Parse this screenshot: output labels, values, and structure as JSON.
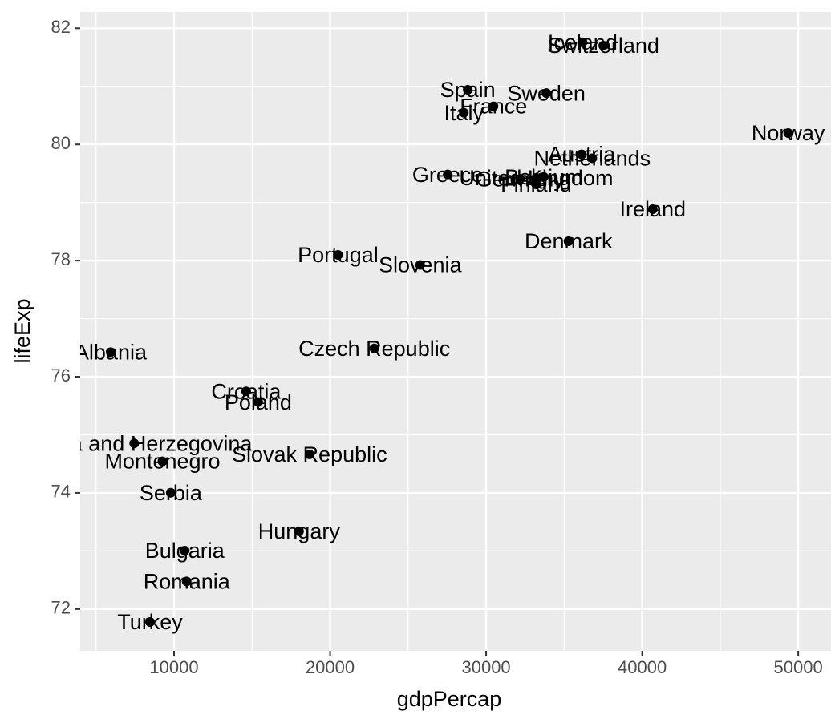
{
  "chart_data": {
    "type": "scatter",
    "x_label": "gdpPercap",
    "y_label": "lifeExp",
    "labels": [
      "Albania",
      "Austria",
      "Belgium",
      "Bosnia and Herzegovina",
      "Bulgaria",
      "Croatia",
      "Czech Republic",
      "Denmark",
      "Finland",
      "France",
      "Germany",
      "Greece",
      "Hungary",
      "Iceland",
      "Ireland",
      "Italy",
      "Montenegro",
      "Netherlands",
      "Norway",
      "Poland",
      "Portugal",
      "Romania",
      "Serbia",
      "Slovak Republic",
      "Slovenia",
      "Spain",
      "Sweden",
      "Switzerland",
      "Turkey",
      "United Kingdom"
    ],
    "x": [
      5937.03,
      36126.49,
      33692.61,
      7446.3,
      10680.79,
      14619.22,
      22833.31,
      35278.42,
      33207.08,
      30470.02,
      32170.37,
      27538.41,
      18008.94,
      36180.79,
      40676.0,
      28569.72,
      9253.9,
      36797.93,
      49357.19,
      15389.92,
      20509.65,
      10808.48,
      9786.53,
      18678.31,
      25768.26,
      28821.06,
      33859.75,
      37506.42,
      8458.28,
      33203.26
    ],
    "y": [
      76.423,
      79.829,
      79.441,
      74.852,
      73.005,
      75.748,
      76.486,
      78.332,
      79.313,
      80.657,
      79.406,
      79.483,
      73.338,
      81.757,
      78.885,
      80.546,
      74.543,
      79.762,
      80.196,
      75.563,
      78.098,
      72.476,
      74.002,
      74.663,
      77.926,
      80.941,
      80.884,
      81.701,
      71.777,
      79.425
    ],
    "color": "#000000",
    "xlim": [
      3985,
      52100
    ],
    "ylim": [
      71.28,
      82.28
    ],
    "xticks": [
      10000,
      20000,
      30000,
      40000,
      50000
    ],
    "yticks": [
      72,
      74,
      76,
      78,
      80,
      82
    ],
    "grid": true
  }
}
